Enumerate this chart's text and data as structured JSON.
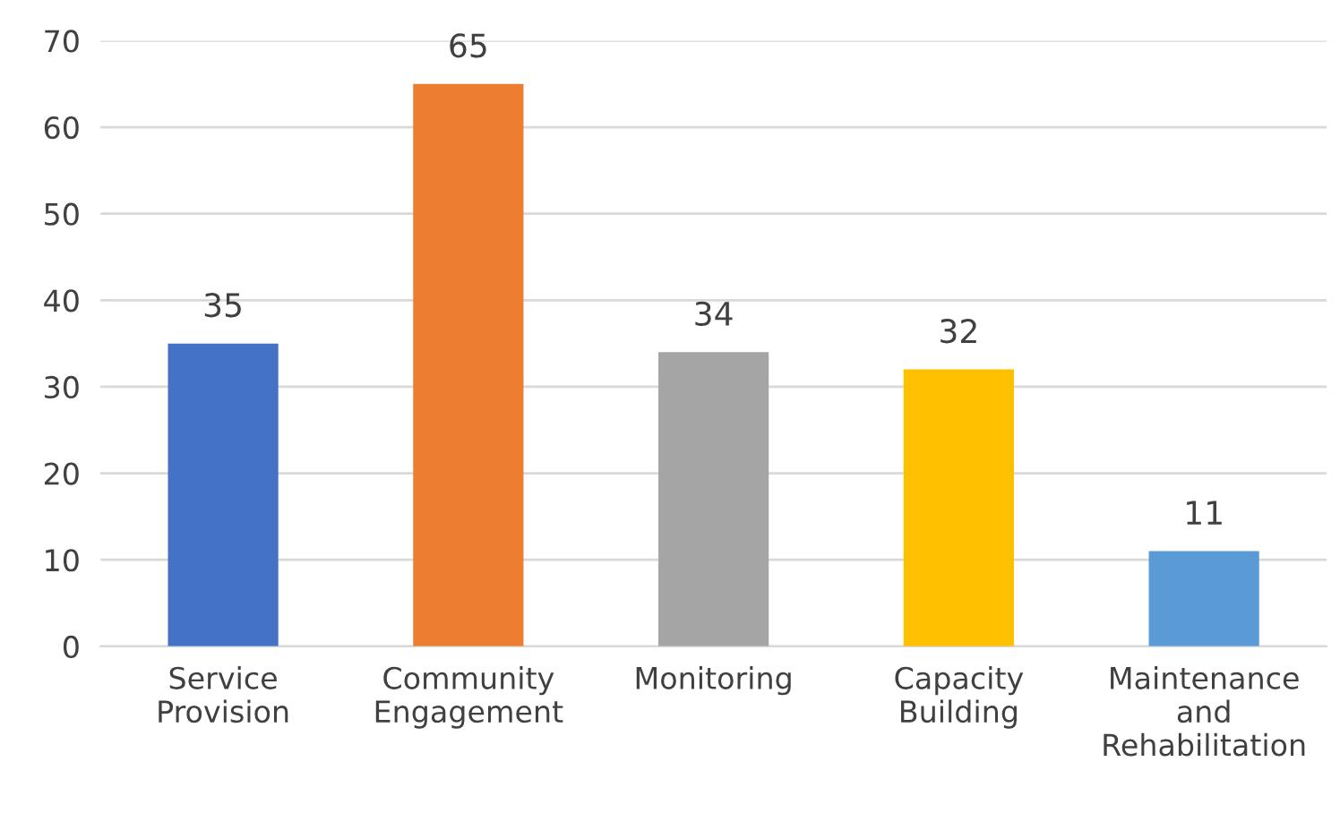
{
  "chart_data": {
    "type": "bar",
    "categories": [
      "Service\nProvision",
      "Community\nEngagement",
      "Monitoring",
      "Capacity\nBuilding",
      "Maintenance\nand\nRehabilitation"
    ],
    "values": [
      35,
      65,
      34,
      32,
      11
    ],
    "colors": [
      "#4472c4",
      "#ed7d31",
      "#a5a5a5",
      "#ffc000",
      "#5b9bd5"
    ],
    "ylim": [
      0,
      70
    ],
    "yticks": [
      0,
      10,
      20,
      30,
      40,
      50,
      60,
      70
    ],
    "grid": "y",
    "data_labels": true,
    "legend": false
  }
}
